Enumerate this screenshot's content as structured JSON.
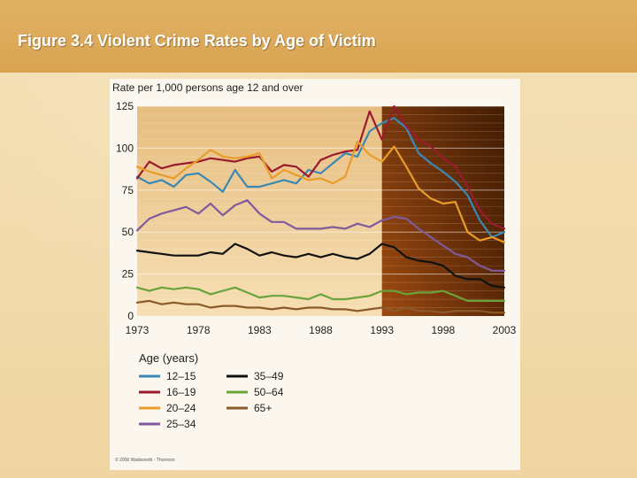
{
  "slide": {
    "title": "Figure 3.4 Violent Crime Rates by Age of Victim",
    "copyright": "© 2006 Wadsworth - Thomson"
  },
  "colors": {
    "band": "#dca85a",
    "plot_light": "#f1cf95",
    "plot_dark": "#6b3208"
  },
  "chart_data": {
    "type": "line",
    "title": "",
    "ylabel": "Rate per 1,000 persons age 12 and over",
    "xlabel": "",
    "xlim": [
      1973,
      2003
    ],
    "ylim": [
      0,
      125
    ],
    "x_ticks": [
      "1973",
      "1978",
      "1983",
      "1988",
      "1993",
      "1998",
      "2003"
    ],
    "y_ticks": [
      "0",
      "25",
      "50",
      "75",
      "100",
      "125"
    ],
    "shaded_from": 1993,
    "legend_title": "Age (years)",
    "x": [
      1973,
      1974,
      1975,
      1976,
      1977,
      1978,
      1979,
      1980,
      1981,
      1982,
      1983,
      1984,
      1985,
      1986,
      1987,
      1988,
      1989,
      1990,
      1991,
      1992,
      1993,
      1994,
      1995,
      1996,
      1997,
      1998,
      1999,
      2000,
      2001,
      2002,
      2003
    ],
    "series": [
      {
        "name": "12–15",
        "color": "#3a88b4",
        "values": [
          83,
          79,
          81,
          77,
          84,
          85,
          80,
          74,
          87,
          77,
          77,
          79,
          81,
          79,
          87,
          85,
          91,
          97,
          95,
          110,
          115,
          118,
          112,
          97,
          91,
          86,
          80,
          72,
          57,
          47,
          50
        ]
      },
      {
        "name": "16–19",
        "color": "#9a1b2e",
        "values": [
          82,
          92,
          88,
          90,
          91,
          92,
          94,
          93,
          92,
          94,
          95,
          86,
          90,
          89,
          83,
          93,
          96,
          98,
          99,
          122,
          105,
          125,
          113,
          105,
          101,
          94,
          89,
          77,
          63,
          55,
          52
        ]
      },
      {
        "name": "20–24",
        "color": "#e89c2a",
        "values": [
          89,
          86,
          84,
          82,
          88,
          93,
          99,
          95,
          94,
          95,
          97,
          82,
          87,
          84,
          81,
          82,
          79,
          83,
          104,
          96,
          92,
          101,
          89,
          76,
          70,
          67,
          68,
          50,
          45,
          47,
          44
        ]
      },
      {
        "name": "25–34",
        "color": "#7f5a9c",
        "values": [
          51,
          58,
          61,
          63,
          65,
          61,
          67,
          60,
          66,
          69,
          61,
          56,
          56,
          52,
          52,
          52,
          53,
          52,
          55,
          53,
          57,
          59,
          58,
          52,
          47,
          42,
          37,
          35,
          30,
          27,
          27
        ]
      },
      {
        "name": "35–49",
        "color": "#111111",
        "values": [
          39,
          38,
          37,
          36,
          36,
          36,
          38,
          37,
          43,
          40,
          36,
          38,
          36,
          35,
          37,
          35,
          37,
          35,
          34,
          37,
          43,
          41,
          35,
          33,
          32,
          30,
          24,
          22,
          22,
          18,
          17
        ]
      },
      {
        "name": "50–64",
        "color": "#6aa33a",
        "values": [
          17,
          15,
          17,
          16,
          17,
          16,
          13,
          15,
          17,
          14,
          11,
          12,
          12,
          11,
          10,
          13,
          10,
          10,
          11,
          12,
          15,
          15,
          13,
          14,
          14,
          15,
          12,
          9,
          9,
          9,
          9
        ]
      },
      {
        "name": "65+",
        "color": "#8b5a2b",
        "values": [
          8,
          9,
          7,
          8,
          7,
          7,
          5,
          6,
          6,
          5,
          5,
          4,
          5,
          4,
          5,
          5,
          4,
          4,
          3,
          4,
          5,
          3,
          5,
          3,
          3,
          2,
          3,
          3,
          3,
          2,
          2
        ]
      }
    ]
  }
}
